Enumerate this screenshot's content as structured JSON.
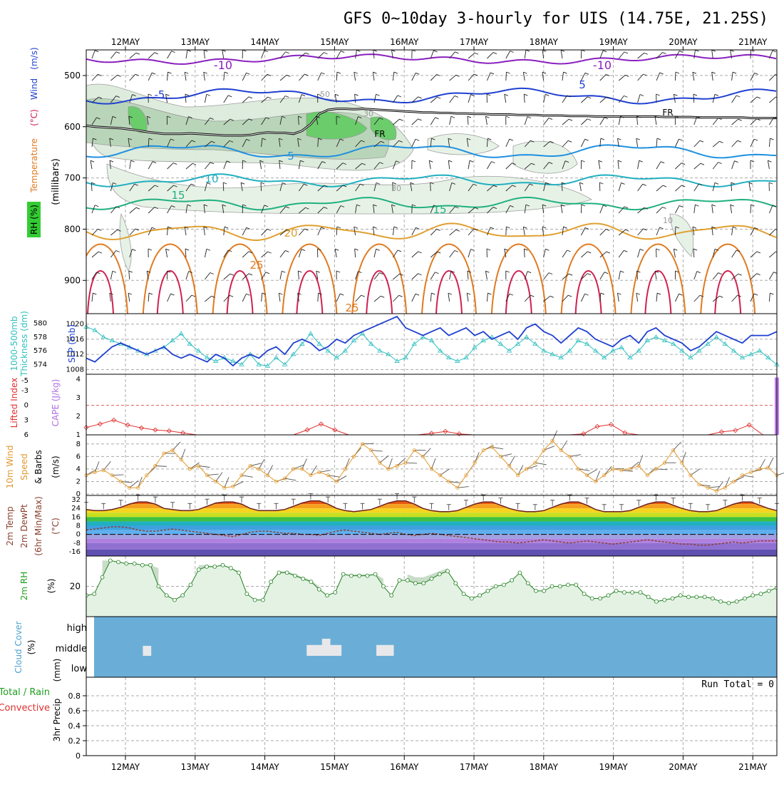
{
  "chart_data": {
    "type": "meteogram",
    "title": "GFS 0~10day 3-hourly for UIS (14.75E, 21.25S)",
    "dates": [
      "12MAY",
      "13MAY",
      "14MAY",
      "15MAY",
      "16MAY",
      "17MAY",
      "18MAY",
      "19MAY",
      "20MAY",
      "21MAY"
    ],
    "panels": [
      {
        "id": "upper_air",
        "ylabel_parts": [
          "RH (%)",
          "Temperature",
          "(°C)",
          "Wind",
          "(m/s)"
        ],
        "ylabel2": "(millibars)",
        "pressure_ticks": [
          "500",
          "600",
          "700",
          "800",
          "900"
        ],
        "pressure_range": [
          450,
          965
        ],
        "contour_labels": [
          "-10",
          "-10",
          "5",
          "5",
          "-5",
          "-15",
          "10",
          "10",
          "15",
          "15",
          "20",
          "25",
          "25",
          "FR",
          "FR",
          "30",
          "30",
          "50",
          "10"
        ],
        "freezing_level_mb": [
          598,
          600,
          601,
          602,
          603,
          605,
          607,
          610,
          612,
          614,
          614,
          614,
          613,
          614,
          615,
          616,
          617,
          617,
          617,
          616,
          613,
          611,
          612,
          612,
          614,
          608,
          595,
          575,
          567,
          565,
          565,
          566,
          565,
          566,
          567,
          568,
          569,
          570,
          571,
          572,
          572,
          573,
          573,
          574,
          574,
          575,
          575,
          576,
          576,
          576,
          577,
          577,
          577,
          578,
          578,
          578,
          579,
          579,
          579,
          580,
          580,
          580,
          580,
          580,
          580,
          580,
          580,
          581,
          581,
          581,
          581,
          582,
          582,
          582,
          582,
          582,
          582,
          583,
          583,
          583,
          583
        ]
      },
      {
        "id": "thickness_slp",
        "ylabel_left": "1000-500mb Thickness (dm)",
        "ylabel_right": "SLP (mb)",
        "thickness_ticks": [
          "580",
          "578",
          "576",
          "574"
        ],
        "slp_ticks": [
          "1020",
          "1016",
          "1012",
          "1008"
        ],
        "thickness_range": [
          573,
          581
        ],
        "slp_range": [
          1007.5,
          1022
        ],
        "thickness_dm": [
          579.5,
          579,
          578,
          577.5,
          577,
          576.5,
          576,
          575.5,
          576,
          576.5,
          577.5,
          578.5,
          577,
          576,
          575,
          574.5,
          575,
          574.5,
          574,
          575.5,
          574,
          573.8,
          575,
          574,
          575.5,
          577,
          578.5,
          577,
          576,
          575,
          576,
          577.5,
          578.5,
          577,
          576,
          575.5,
          574.5,
          575,
          577,
          578,
          577.5,
          576,
          575,
          574.5,
          575,
          576.5,
          577.5,
          578,
          577,
          576,
          577,
          578,
          577,
          576,
          575.5,
          575,
          576,
          577.5,
          577,
          576,
          575,
          576,
          576.5,
          575,
          576,
          577.5,
          578,
          577.5,
          577,
          576,
          575,
          576,
          577,
          578,
          577,
          576,
          575,
          575.5,
          576,
          575,
          574
        ],
        "slp_mb": [
          1011,
          1010,
          1012,
          1014,
          1015,
          1014,
          1013,
          1012,
          1013,
          1014,
          1012,
          1011,
          1012,
          1011,
          1010,
          1012,
          1011,
          1009,
          1011,
          1012,
          1011,
          1013,
          1014,
          1012,
          1015,
          1016,
          1015,
          1013,
          1014,
          1016,
          1015,
          1017,
          1018,
          1019,
          1020,
          1021,
          1022,
          1019,
          1018,
          1017,
          1018,
          1019,
          1017,
          1018,
          1019,
          1017,
          1018,
          1016,
          1017,
          1018,
          1016,
          1019,
          1020,
          1018,
          1017,
          1015,
          1017,
          1019,
          1018,
          1016,
          1015,
          1014,
          1016,
          1017,
          1015,
          1018,
          1019,
          1017,
          1016,
          1015,
          1013,
          1014,
          1016,
          1018,
          1017,
          1016,
          1015,
          1017,
          1017,
          1017,
          1018
        ]
      },
      {
        "id": "cape_li",
        "ylabel_left": "Lifted Index",
        "ylabel_right": "CAPE (J/kg)",
        "li_ticks": [
          "-5",
          "-3",
          "0",
          "3",
          "6"
        ],
        "cape_ticks": [
          "4",
          "3",
          "2",
          "1"
        ],
        "li_range": [
          -6,
          6
        ],
        "cape_range": [
          1,
          4.2
        ],
        "lifted_index": [
          4.5,
          3.8,
          3,
          4,
          4.6,
          5,
          5.2,
          5.6,
          6,
          6,
          6,
          6,
          6,
          6,
          6,
          6,
          5,
          3.8,
          5,
          6,
          6,
          6,
          6,
          6,
          6,
          5.7,
          5.3,
          5.8,
          6,
          6,
          6,
          6,
          6,
          6,
          6,
          6,
          5.8,
          4.3,
          3.9,
          5.6,
          6,
          6,
          6,
          6,
          6,
          6,
          5.4,
          5.1,
          4,
          6,
          6
        ],
        "cape_index": 50,
        "cape_value": 4.1
      },
      {
        "id": "wind10m",
        "ylabel_parts": [
          "10m Wind",
          "Speed",
          "& Barbs",
          "(m/s)"
        ],
        "ticks": [
          "8",
          "6",
          "4",
          "2",
          "0"
        ],
        "range": [
          0,
          9
        ],
        "speed_ms": [
          3,
          3.5,
          3.8,
          3,
          2,
          1,
          1,
          3,
          4.5,
          6.5,
          7,
          5.5,
          4,
          4.5,
          3,
          2,
          1,
          1.2,
          3,
          4.5,
          4,
          3,
          2,
          2.5,
          4,
          4,
          3,
          3.5,
          3,
          2,
          4,
          6,
          8,
          7,
          5,
          4,
          4.5,
          5,
          7,
          6,
          4,
          3,
          2,
          1,
          3,
          5,
          7,
          7.5,
          6,
          4.5,
          3,
          4,
          5,
          7,
          8.5,
          7,
          6,
          4,
          3,
          2,
          3,
          4,
          3.8,
          4,
          4.5,
          3,
          4,
          5,
          7,
          5,
          3,
          1.5,
          1,
          0.5,
          1,
          2,
          3,
          3.5,
          4,
          4.2,
          3
        ]
      },
      {
        "id": "temp2m",
        "ylabel_parts": [
          "2m Temp",
          "2m DewPt",
          "(6hr Min/Max)",
          "(°C)"
        ],
        "ticks": [
          "32",
          "24",
          "16",
          "8",
          "0",
          "-8",
          "-16"
        ],
        "range": [
          -20,
          36
        ],
        "temperature": [
          23,
          22,
          22,
          23,
          25,
          28,
          30,
          30,
          28,
          24,
          23,
          22,
          22,
          23,
          26,
          29,
          30,
          30,
          28,
          24,
          22,
          22,
          22,
          23,
          26,
          29,
          31,
          31,
          28,
          24,
          22,
          21,
          22,
          23,
          26,
          29,
          31,
          31,
          28,
          24,
          22,
          21,
          21,
          22,
          25,
          28,
          30,
          30,
          27,
          24,
          22,
          21,
          21,
          22,
          25,
          28,
          30,
          30,
          27,
          23,
          21,
          21,
          21,
          22,
          25,
          28,
          30,
          30,
          27,
          24,
          22,
          21,
          21,
          22,
          25,
          28,
          30,
          30,
          27,
          24,
          22
        ],
        "dewpoint": [
          4,
          5,
          6,
          7,
          7,
          6,
          4,
          3,
          3,
          4,
          5,
          4,
          3,
          2,
          1,
          0,
          -1,
          -2,
          0,
          2,
          3,
          3,
          2,
          1,
          1,
          0,
          0,
          -1,
          1,
          3,
          4,
          3,
          2,
          1,
          0,
          1,
          2,
          0,
          -1,
          0,
          1,
          0,
          -1,
          -2,
          -3,
          -4,
          -5,
          -6,
          -7,
          -7,
          -8,
          -7,
          -6,
          -5,
          -6,
          -7,
          -8,
          -7,
          -6,
          -7,
          -8,
          -9,
          -8,
          -7,
          -6,
          -5,
          -6,
          -7,
          -8,
          -9,
          -9,
          -10,
          -10,
          -9,
          -8,
          -7,
          -8,
          -7,
          -6,
          -6,
          -6
        ]
      },
      {
        "id": "rh2m",
        "ylabel_parts": [
          "2m RH",
          "(%)"
        ],
        "ticks": [
          "20"
        ],
        "range": [
          0,
          40
        ],
        "rh_percent": [
          14,
          15,
          26,
          37,
          36,
          35,
          35,
          34,
          34,
          20,
          14,
          11,
          14,
          21,
          31,
          33,
          33,
          34,
          32,
          29,
          15,
          11,
          11,
          23,
          29,
          29,
          27,
          25,
          23,
          18,
          14,
          16,
          28,
          27,
          27,
          27,
          28,
          20,
          14,
          24,
          24,
          22,
          22,
          25,
          28,
          30,
          22,
          15,
          12,
          14,
          17,
          20,
          21,
          24,
          29,
          22,
          17,
          17,
          20,
          20,
          21,
          21,
          15,
          12,
          12,
          14,
          17,
          16,
          16,
          16,
          13,
          10,
          11,
          12,
          14,
          13,
          13,
          13,
          12,
          10,
          9,
          10,
          12,
          14,
          15,
          17,
          19
        ],
        "rh_max": [
          0,
          0,
          37,
          36,
          36,
          35,
          35,
          34,
          34,
          32,
          0,
          0,
          0,
          0,
          34,
          34,
          33,
          33,
          32,
          30,
          0,
          0,
          0,
          0,
          30,
          30,
          28,
          26,
          24,
          20,
          0,
          0,
          0,
          28,
          28,
          28,
          28,
          25,
          0,
          0,
          28,
          26,
          26,
          28,
          30,
          32,
          0,
          0,
          0,
          0,
          0,
          0,
          0,
          0,
          0,
          0,
          0,
          0,
          0,
          0,
          0,
          0,
          0,
          0,
          0,
          0,
          0,
          0,
          0,
          0,
          0,
          0,
          0,
          0,
          0,
          0,
          0,
          0,
          0,
          0,
          0,
          0,
          0,
          0,
          0,
          0,
          0
        ]
      },
      {
        "id": "cloud",
        "ylabel_parts": [
          "Cloud Cover",
          "(%)"
        ],
        "levels": [
          "high",
          "middle",
          "low"
        ],
        "patches": [
          {
            "day": 1.25,
            "width_days": 0.12,
            "level": 0.35
          },
          {
            "day": 3.6,
            "width_days": 0.5,
            "level": 0.38
          },
          {
            "day": 3.82,
            "width_days": 0.12,
            "level": 0.6
          },
          {
            "day": 4.6,
            "width_days": 0.25,
            "level": 0.38
          }
        ]
      },
      {
        "id": "precip",
        "ylabel_parts": [
          "Total / Rain",
          "Convective",
          "3hr Precip",
          "(mm)"
        ],
        "run_total": "Run Total = 0",
        "ticks": [
          "0.8",
          "0.6",
          "0.4",
          "0.2",
          "0"
        ],
        "range": [
          0,
          1
        ]
      }
    ]
  }
}
